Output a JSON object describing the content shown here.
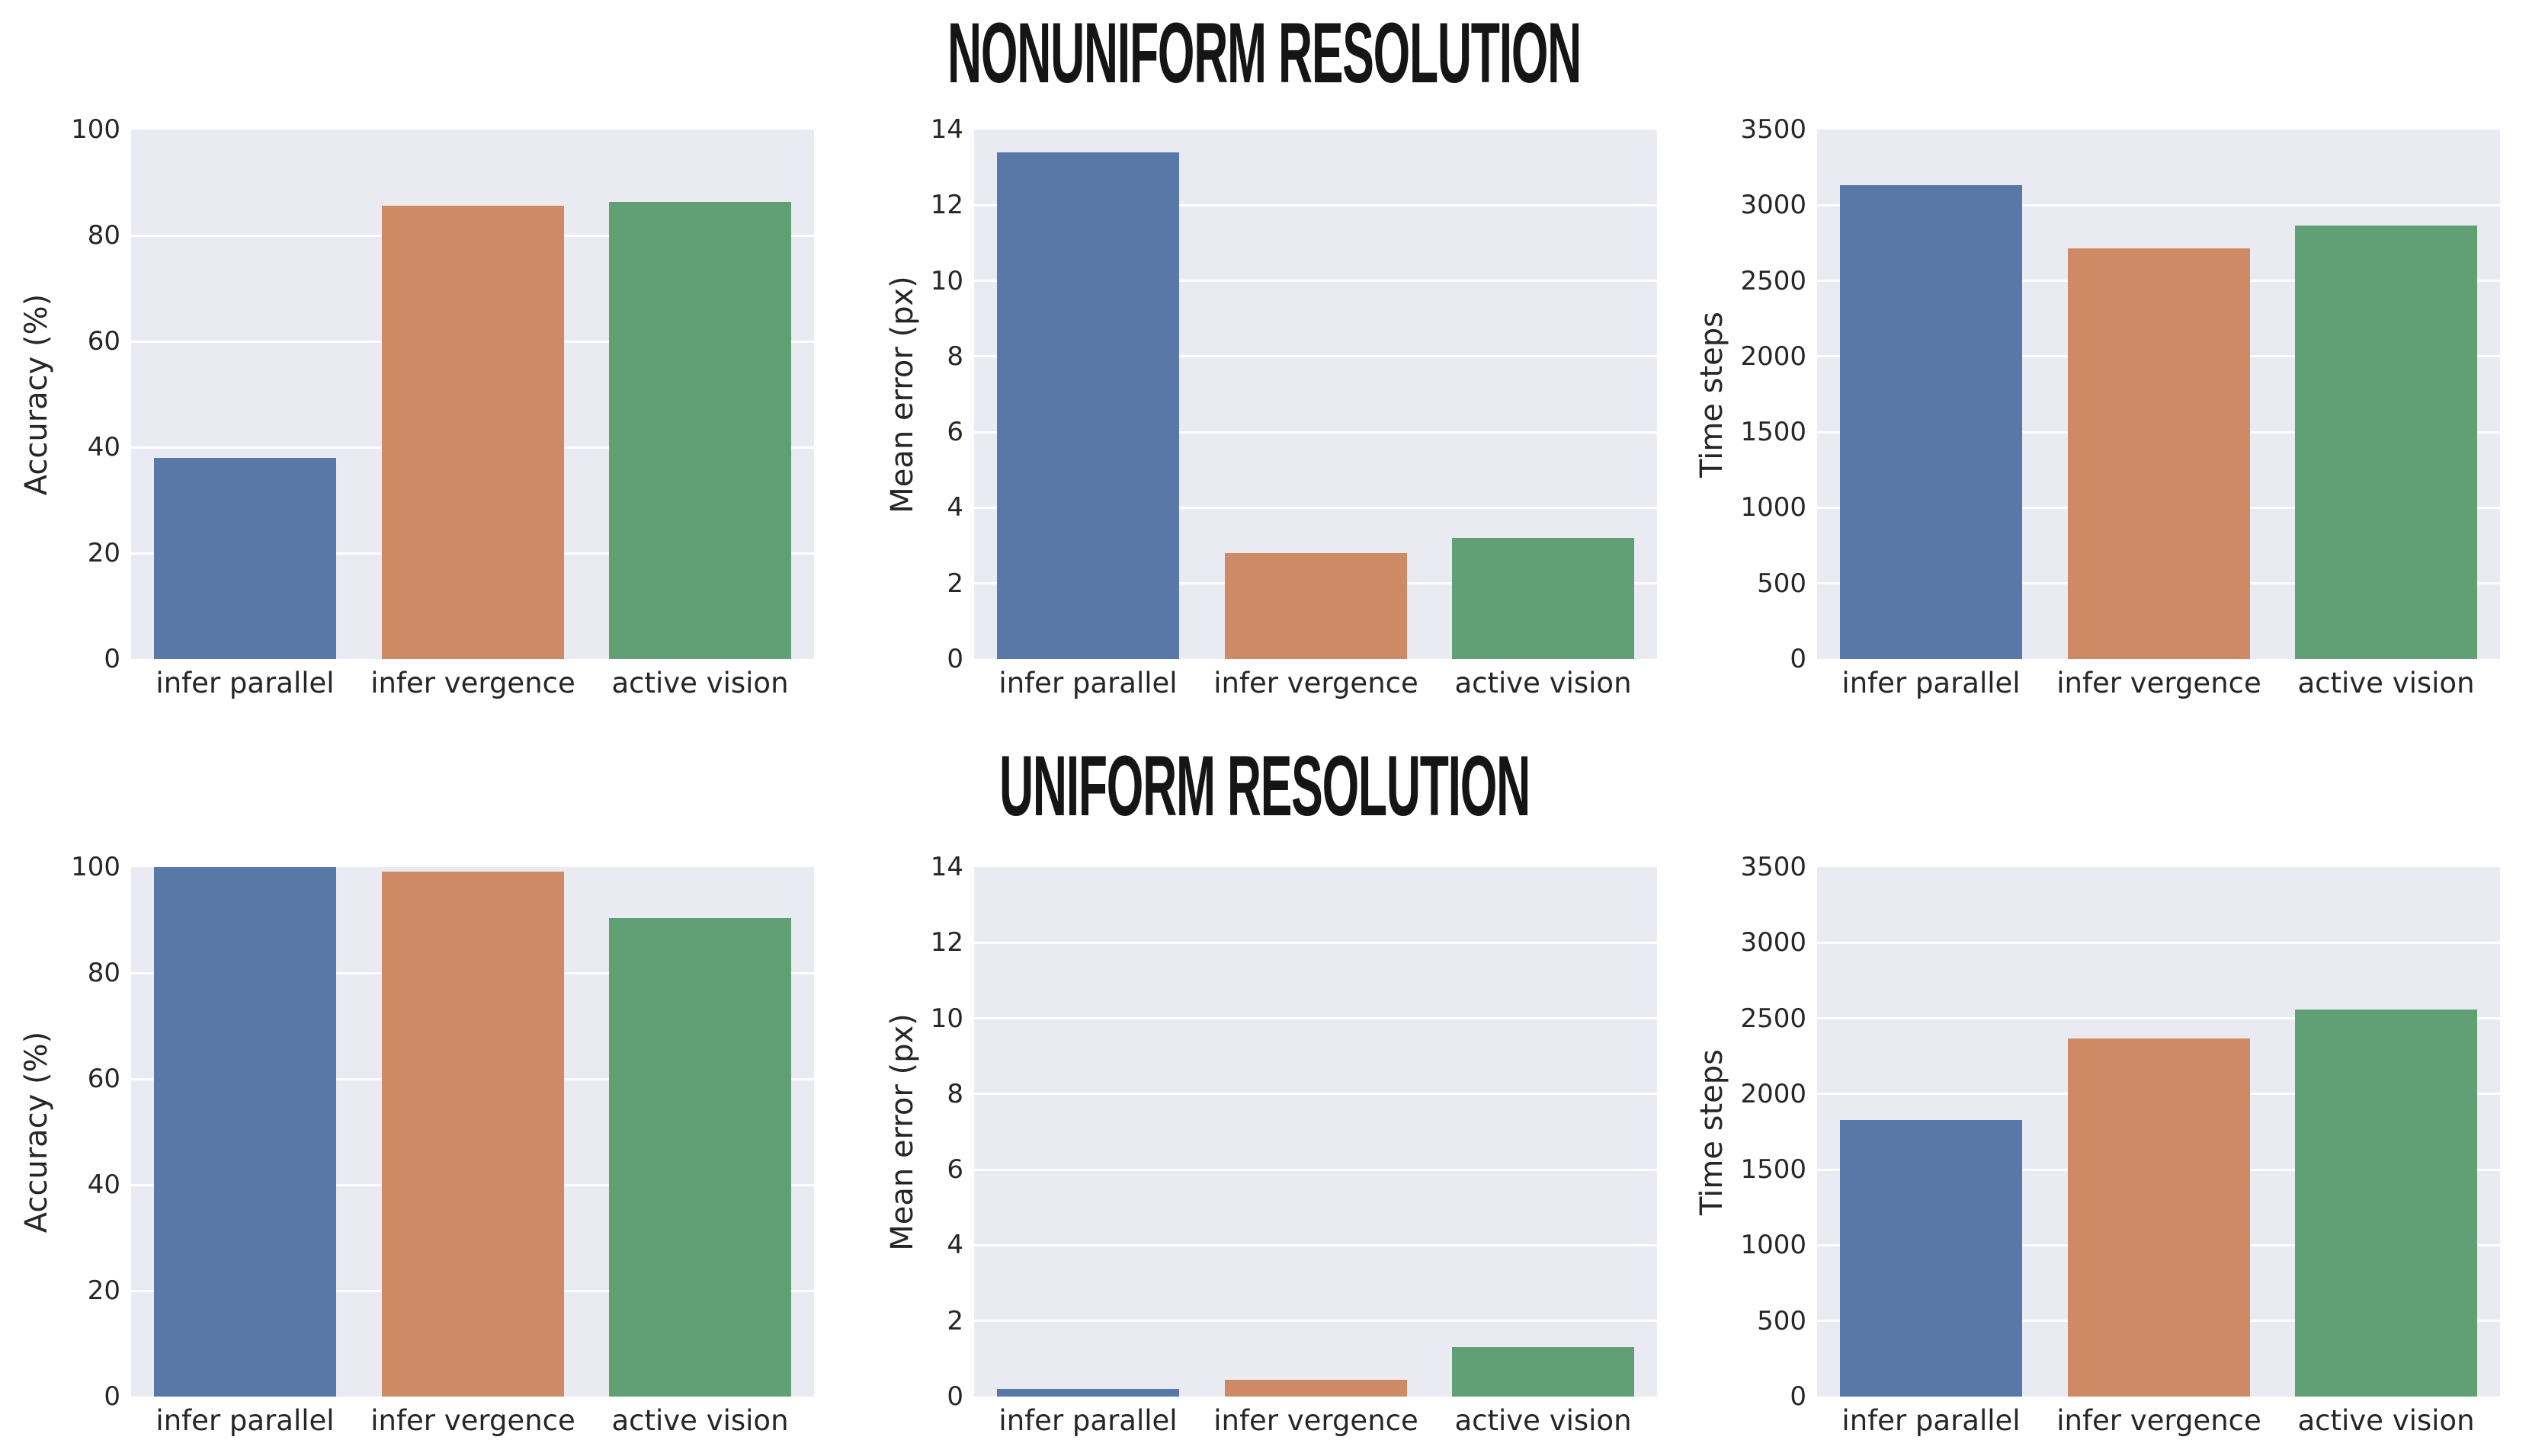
{
  "titles": [
    "NONUNIFORM RESOLUTION",
    "UNIFORM RESOLUTION"
  ],
  "palette": {
    "bar_colors": [
      "#5878a8",
      "#cd8a64",
      "#61a075"
    ],
    "axes_background": "#eaeaf2",
    "grid_color": "#ffffff",
    "text_color": "#262626",
    "title_color": "#151515"
  },
  "categories": [
    "infer parallel",
    "infer vergence",
    "active vision"
  ],
  "chart_data": [
    {
      "type": "bar",
      "group": "NONUNIFORM RESOLUTION",
      "ylabel": "Accuracy (%)",
      "categories": [
        "infer parallel",
        "infer vergence",
        "active vision"
      ],
      "values": [
        38.0,
        85.6,
        86.4
      ],
      "ylim": [
        0,
        100
      ],
      "yticks": [
        0,
        20,
        40,
        60,
        80,
        100
      ],
      "grid": true,
      "legend": false
    },
    {
      "type": "bar",
      "group": "NONUNIFORM RESOLUTION",
      "ylabel": "Mean error (px)",
      "categories": [
        "infer parallel",
        "infer vergence",
        "active vision"
      ],
      "values": [
        13.4,
        2.8,
        3.2
      ],
      "ylim": [
        0,
        14
      ],
      "yticks": [
        0,
        2,
        4,
        6,
        8,
        10,
        12,
        14
      ],
      "grid": true,
      "legend": false
    },
    {
      "type": "bar",
      "group": "NONUNIFORM RESOLUTION",
      "ylabel": "Time steps",
      "categories": [
        "infer parallel",
        "infer vergence",
        "active vision"
      ],
      "values": [
        3130,
        2715,
        2865
      ],
      "ylim": [
        0,
        3500
      ],
      "yticks": [
        0,
        500,
        1000,
        1500,
        2000,
        2500,
        3000,
        3500
      ],
      "grid": true,
      "legend": false
    },
    {
      "type": "bar",
      "group": "UNIFORM RESOLUTION",
      "ylabel": "Accuracy (%)",
      "categories": [
        "infer parallel",
        "infer vergence",
        "active vision"
      ],
      "values": [
        100.0,
        99.2,
        90.3
      ],
      "ylim": [
        0,
        100
      ],
      "yticks": [
        0,
        20,
        40,
        60,
        80,
        100
      ],
      "grid": true,
      "legend": false
    },
    {
      "type": "bar",
      "group": "UNIFORM RESOLUTION",
      "ylabel": "Mean error (px)",
      "categories": [
        "infer parallel",
        "infer vergence",
        "active vision"
      ],
      "values": [
        0.2,
        0.45,
        1.3
      ],
      "ylim": [
        0,
        14
      ],
      "yticks": [
        0,
        2,
        4,
        6,
        8,
        10,
        12,
        14
      ],
      "grid": true,
      "legend": false
    },
    {
      "type": "bar",
      "group": "UNIFORM RESOLUTION",
      "ylabel": "Time steps",
      "categories": [
        "infer parallel",
        "infer vergence",
        "active vision"
      ],
      "values": [
        1830,
        2365,
        2560
      ],
      "ylim": [
        0,
        3500
      ],
      "yticks": [
        0,
        500,
        1000,
        1500,
        2000,
        2500,
        3000,
        3500
      ],
      "grid": true,
      "legend": false
    }
  ]
}
